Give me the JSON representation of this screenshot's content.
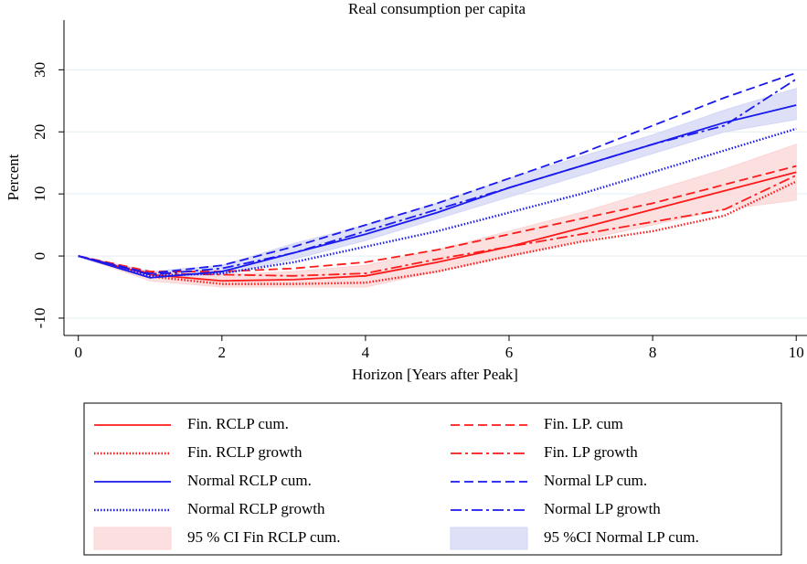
{
  "chart_data": {
    "type": "line",
    "title": "Real consumption per capita",
    "x_label": "Horizon [Years after Peak]",
    "y_label": "Percent",
    "x": [
      0,
      1,
      2,
      3,
      4,
      5,
      6,
      7,
      8,
      9,
      10
    ],
    "xlim": [
      -0.2,
      10.15
    ],
    "ylim": [
      -12.8,
      38
    ],
    "xticks": [
      0,
      2,
      4,
      6,
      8,
      10
    ],
    "yticks": [
      -10,
      0,
      10,
      20,
      30
    ],
    "grid": true,
    "series": [
      {
        "name": "Fin. RCLP cum.",
        "color": "#ff1a1a",
        "style": "solid",
        "values": [
          0,
          -3,
          -4,
          -3.8,
          -3.2,
          -1,
          1.5,
          4.5,
          7.5,
          10.5,
          13.5
        ]
      },
      {
        "name": "Fin. LP. cum",
        "color": "#ff1a1a",
        "style": "dashed",
        "values": [
          0,
          -2.5,
          -2.5,
          -2,
          -1,
          1,
          3.5,
          6,
          8.5,
          11.5,
          14.5
        ]
      },
      {
        "name": "Fin. RCLP growth",
        "color": "#ff1a1a",
        "style": "dotted",
        "values": [
          0,
          -3.3,
          -4.5,
          -4.5,
          -4.3,
          -2.5,
          0,
          2.3,
          4,
          6.5,
          12
        ]
      },
      {
        "name": "Fin. LP growth",
        "color": "#ff1a1a",
        "style": "dashdot",
        "values": [
          0,
          -2.8,
          -3,
          -3.2,
          -2.8,
          -0.5,
          1.5,
          3.5,
          5.5,
          7.5,
          13
        ]
      },
      {
        "name": "Normal RCLP cum.",
        "color": "#1a1aee",
        "style": "solid",
        "values": [
          0,
          -3.5,
          -2.5,
          0.5,
          3.5,
          7,
          11,
          14.5,
          18,
          21.5,
          24.3
        ]
      },
      {
        "name": "Normal LP cum.",
        "color": "#1a1aee",
        "style": "dashed",
        "values": [
          0,
          -2.8,
          -1.5,
          1.5,
          5,
          8.5,
          12.5,
          16.5,
          21,
          25.5,
          29.5
        ]
      },
      {
        "name": "Normal RCLP growth",
        "color": "#1a1aee",
        "style": "dotted",
        "values": [
          0,
          -3.2,
          -2.8,
          -1,
          1.5,
          4,
          7,
          10,
          13.5,
          17,
          20.5
        ]
      },
      {
        "name": "Normal LP growth",
        "color": "#1a1aee",
        "style": "dashdot",
        "values": [
          0,
          -3,
          -2,
          0.5,
          4,
          7.5,
          11,
          14.5,
          18,
          21,
          28.5
        ]
      }
    ],
    "bands": [
      {
        "name": "95 % CI Fin RCLP cum.",
        "color": "#fbd5d5",
        "lower": [
          0,
          -4,
          -5,
          -5,
          -5,
          -2.5,
          0,
          2.5,
          5,
          7.5,
          9
        ],
        "upper": [
          0,
          -2.5,
          -3,
          -2.5,
          -1.5,
          1,
          4,
          7,
          10.5,
          14,
          18
        ]
      },
      {
        "name": "95 %CI Normal LP cum.",
        "color": "#d3d6f5",
        "lower": [
          0,
          -3.5,
          -3,
          -0.5,
          2.5,
          6,
          9.5,
          13,
          16.5,
          20,
          22
        ],
        "upper": [
          0,
          -2.5,
          -1.5,
          2,
          5,
          8.5,
          12.5,
          16,
          19.5,
          23.5,
          27
        ]
      }
    ]
  }
}
